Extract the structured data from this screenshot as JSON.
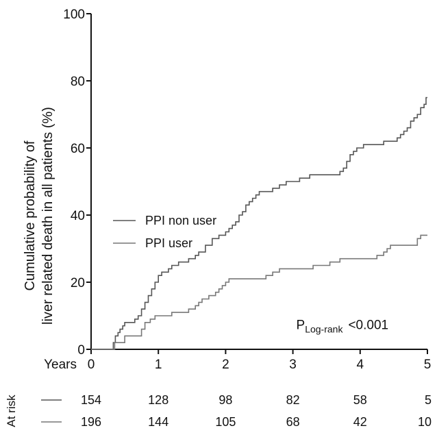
{
  "chart_data": {
    "type": "line",
    "ylabel_lines": [
      "Cumulative probability of",
      "liver related death in all patients (%)"
    ],
    "xlabel": "Years",
    "xlim": [
      0,
      5
    ],
    "ylim": [
      0,
      100
    ],
    "x_ticks": [
      0,
      1,
      2,
      3,
      4,
      5
    ],
    "y_ticks": [
      0,
      20,
      40,
      60,
      80,
      100
    ],
    "grid": false,
    "legend_position": "center-left",
    "series": [
      {
        "name": "PPI non user",
        "color": "#555555",
        "step": true,
        "points": [
          [
            0,
            0
          ],
          [
            0.3,
            0
          ],
          [
            0.33,
            2
          ],
          [
            0.36,
            4
          ],
          [
            0.4,
            5
          ],
          [
            0.43,
            6
          ],
          [
            0.47,
            7
          ],
          [
            0.5,
            8
          ],
          [
            0.6,
            8
          ],
          [
            0.65,
            9
          ],
          [
            0.7,
            10
          ],
          [
            0.75,
            12
          ],
          [
            0.8,
            14
          ],
          [
            0.85,
            16
          ],
          [
            0.9,
            18
          ],
          [
            0.95,
            20
          ],
          [
            1.0,
            22
          ],
          [
            1.05,
            23
          ],
          [
            1.15,
            24
          ],
          [
            1.2,
            25
          ],
          [
            1.3,
            26
          ],
          [
            1.45,
            27
          ],
          [
            1.55,
            28
          ],
          [
            1.6,
            29
          ],
          [
            1.7,
            31
          ],
          [
            1.8,
            33
          ],
          [
            1.9,
            34
          ],
          [
            2.0,
            35
          ],
          [
            2.05,
            36
          ],
          [
            2.1,
            37
          ],
          [
            2.15,
            38
          ],
          [
            2.2,
            40
          ],
          [
            2.25,
            41
          ],
          [
            2.3,
            43
          ],
          [
            2.35,
            44
          ],
          [
            2.4,
            45
          ],
          [
            2.45,
            46
          ],
          [
            2.5,
            47
          ],
          [
            2.7,
            48
          ],
          [
            2.8,
            49
          ],
          [
            2.9,
            50
          ],
          [
            3.0,
            50
          ],
          [
            3.1,
            51
          ],
          [
            3.25,
            52
          ],
          [
            3.6,
            52
          ],
          [
            3.7,
            53
          ],
          [
            3.75,
            54
          ],
          [
            3.8,
            56
          ],
          [
            3.85,
            58
          ],
          [
            3.9,
            59
          ],
          [
            3.95,
            60
          ],
          [
            4.05,
            61
          ],
          [
            4.3,
            61
          ],
          [
            4.35,
            62
          ],
          [
            4.5,
            62
          ],
          [
            4.55,
            63
          ],
          [
            4.6,
            64
          ],
          [
            4.65,
            65
          ],
          [
            4.7,
            66
          ],
          [
            4.75,
            68
          ],
          [
            4.8,
            69
          ],
          [
            4.85,
            70
          ],
          [
            4.9,
            72
          ],
          [
            4.95,
            73
          ],
          [
            4.98,
            75
          ],
          [
            5.0,
            75
          ]
        ]
      },
      {
        "name": "PPI user",
        "color": "#777777",
        "step": true,
        "points": [
          [
            0,
            0
          ],
          [
            0.3,
            0
          ],
          [
            0.35,
            2
          ],
          [
            0.45,
            2
          ],
          [
            0.5,
            4
          ],
          [
            0.7,
            4
          ],
          [
            0.75,
            6
          ],
          [
            0.8,
            8
          ],
          [
            0.88,
            9
          ],
          [
            0.95,
            10
          ],
          [
            1.15,
            10
          ],
          [
            1.2,
            11
          ],
          [
            1.4,
            11
          ],
          [
            1.45,
            12
          ],
          [
            1.55,
            13
          ],
          [
            1.6,
            14
          ],
          [
            1.65,
            15
          ],
          [
            1.75,
            16
          ],
          [
            1.85,
            17
          ],
          [
            1.9,
            18
          ],
          [
            1.95,
            19
          ],
          [
            2.0,
            20
          ],
          [
            2.05,
            21
          ],
          [
            2.5,
            21
          ],
          [
            2.6,
            22
          ],
          [
            2.7,
            23
          ],
          [
            2.8,
            24
          ],
          [
            3.2,
            24
          ],
          [
            3.3,
            25
          ],
          [
            3.55,
            26
          ],
          [
            3.7,
            27
          ],
          [
            4.2,
            27
          ],
          [
            4.25,
            28
          ],
          [
            4.35,
            29
          ],
          [
            4.4,
            30
          ],
          [
            4.45,
            31
          ],
          [
            4.8,
            31
          ],
          [
            4.85,
            33
          ],
          [
            4.9,
            34
          ],
          [
            5.0,
            34
          ]
        ]
      }
    ],
    "annotation": {
      "p_main": "P",
      "p_sub": "Log-rank",
      "p_value": "<0.001",
      "x": 3.05,
      "y": 6
    },
    "at_risk": {
      "label": "At risk",
      "times": [
        0,
        1,
        2,
        3,
        4,
        5
      ],
      "rows": [
        {
          "values": [
            "154",
            "128",
            "98",
            "82",
            "58",
            "5"
          ]
        },
        {
          "values": [
            "196",
            "144",
            "105",
            "68",
            "42",
            "10"
          ]
        }
      ]
    }
  }
}
